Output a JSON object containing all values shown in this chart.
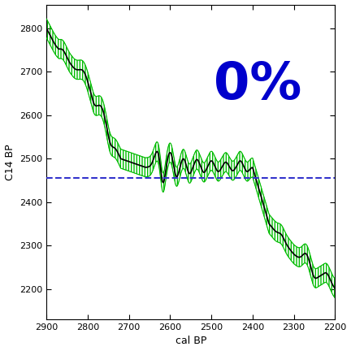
{
  "title": "0%",
  "xlabel": "cal BP",
  "ylabel": "C14 BP",
  "xlim": [
    2900,
    2200
  ],
  "ylim": [
    2130,
    2855
  ],
  "yticks": [
    2200,
    2300,
    2400,
    2500,
    2600,
    2700,
    2800
  ],
  "xticks": [
    2900,
    2800,
    2700,
    2600,
    2500,
    2400,
    2300,
    2200
  ],
  "dashed_line_y": 2456,
  "title_color": "#0000cc",
  "title_fontsize": 46,
  "bg_color": "#ffffff",
  "curve_color": "#00bb00",
  "line_color": "#000000",
  "dashed_color": "#3333cc"
}
